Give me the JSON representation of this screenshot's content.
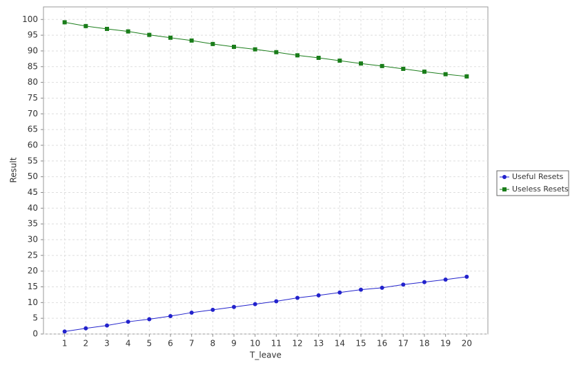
{
  "chart_data": {
    "type": "line",
    "x_label": "T_leave",
    "y_label": "Result",
    "x": [
      1,
      2,
      3,
      4,
      5,
      6,
      7,
      8,
      9,
      10,
      11,
      12,
      13,
      14,
      15,
      16,
      17,
      18,
      19,
      20
    ],
    "series": [
      {
        "name": "Useful Resets",
        "color": "#2222cc",
        "marker": "circle",
        "values": [
          0.8,
          1.8,
          2.7,
          3.9,
          4.7,
          5.7,
          6.8,
          7.7,
          8.6,
          9.5,
          10.4,
          11.5,
          12.3,
          13.2,
          14.1,
          14.7,
          15.7,
          16.5,
          17.3,
          18.2
        ]
      },
      {
        "name": "Useless Resets",
        "color": "#1a7d1a",
        "marker": "square",
        "values": [
          99.1,
          97.9,
          97.0,
          96.2,
          95.1,
          94.2,
          93.3,
          92.2,
          91.3,
          90.5,
          89.6,
          88.6,
          87.8,
          86.9,
          86.0,
          85.2,
          84.3,
          83.4,
          82.6,
          81.9
        ]
      }
    ],
    "xlim": [
      0,
      21
    ],
    "xticks": [
      1,
      2,
      3,
      4,
      5,
      6,
      7,
      8,
      9,
      10,
      11,
      12,
      13,
      14,
      15,
      16,
      17,
      18,
      19,
      20
    ],
    "ylim": [
      0,
      104
    ],
    "yticks": [
      0,
      5,
      10,
      15,
      20,
      25,
      30,
      35,
      40,
      45,
      50,
      55,
      60,
      65,
      70,
      75,
      80,
      85,
      90,
      95,
      100
    ],
    "grid": true,
    "legend": "right"
  }
}
